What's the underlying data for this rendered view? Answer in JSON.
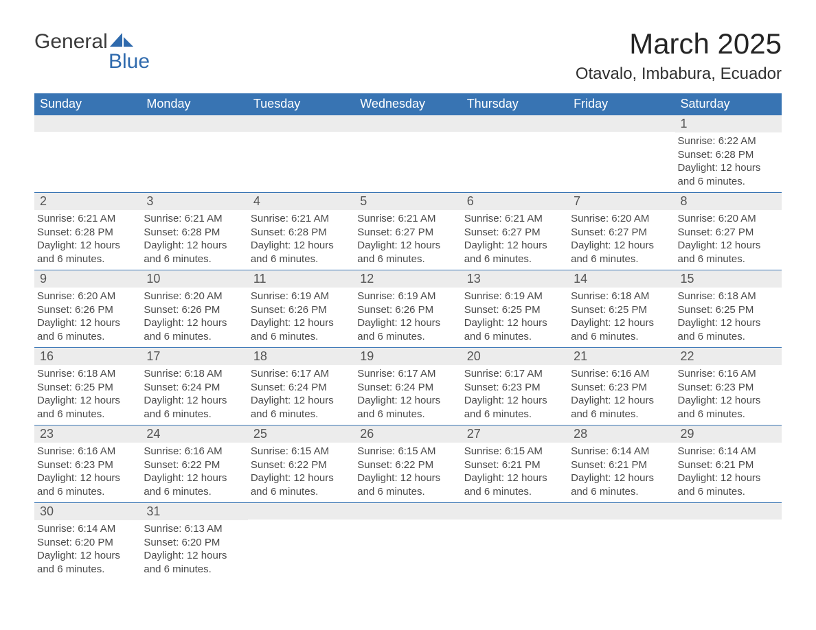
{
  "logo": {
    "line1": "General",
    "line2": "Blue"
  },
  "title": "March 2025",
  "location": "Otavalo, Imbabura, Ecuador",
  "colors": {
    "header_bg": "#3874b3",
    "header_text": "#ffffff",
    "daynum_bg": "#ececec",
    "row_border": "#3874b3",
    "logo_accent": "#2f6aad",
    "body_text": "#404040"
  },
  "day_headers": [
    "Sunday",
    "Monday",
    "Tuesday",
    "Wednesday",
    "Thursday",
    "Friday",
    "Saturday"
  ],
  "weeks": [
    [
      {
        "n": "",
        "sr": "",
        "ss": "",
        "dl": ""
      },
      {
        "n": "",
        "sr": "",
        "ss": "",
        "dl": ""
      },
      {
        "n": "",
        "sr": "",
        "ss": "",
        "dl": ""
      },
      {
        "n": "",
        "sr": "",
        "ss": "",
        "dl": ""
      },
      {
        "n": "",
        "sr": "",
        "ss": "",
        "dl": ""
      },
      {
        "n": "",
        "sr": "",
        "ss": "",
        "dl": ""
      },
      {
        "n": "1",
        "sr": "Sunrise: 6:22 AM",
        "ss": "Sunset: 6:28 PM",
        "dl": "Daylight: 12 hours and 6 minutes."
      }
    ],
    [
      {
        "n": "2",
        "sr": "Sunrise: 6:21 AM",
        "ss": "Sunset: 6:28 PM",
        "dl": "Daylight: 12 hours and 6 minutes."
      },
      {
        "n": "3",
        "sr": "Sunrise: 6:21 AM",
        "ss": "Sunset: 6:28 PM",
        "dl": "Daylight: 12 hours and 6 minutes."
      },
      {
        "n": "4",
        "sr": "Sunrise: 6:21 AM",
        "ss": "Sunset: 6:28 PM",
        "dl": "Daylight: 12 hours and 6 minutes."
      },
      {
        "n": "5",
        "sr": "Sunrise: 6:21 AM",
        "ss": "Sunset: 6:27 PM",
        "dl": "Daylight: 12 hours and 6 minutes."
      },
      {
        "n": "6",
        "sr": "Sunrise: 6:21 AM",
        "ss": "Sunset: 6:27 PM",
        "dl": "Daylight: 12 hours and 6 minutes."
      },
      {
        "n": "7",
        "sr": "Sunrise: 6:20 AM",
        "ss": "Sunset: 6:27 PM",
        "dl": "Daylight: 12 hours and 6 minutes."
      },
      {
        "n": "8",
        "sr": "Sunrise: 6:20 AM",
        "ss": "Sunset: 6:27 PM",
        "dl": "Daylight: 12 hours and 6 minutes."
      }
    ],
    [
      {
        "n": "9",
        "sr": "Sunrise: 6:20 AM",
        "ss": "Sunset: 6:26 PM",
        "dl": "Daylight: 12 hours and 6 minutes."
      },
      {
        "n": "10",
        "sr": "Sunrise: 6:20 AM",
        "ss": "Sunset: 6:26 PM",
        "dl": "Daylight: 12 hours and 6 minutes."
      },
      {
        "n": "11",
        "sr": "Sunrise: 6:19 AM",
        "ss": "Sunset: 6:26 PM",
        "dl": "Daylight: 12 hours and 6 minutes."
      },
      {
        "n": "12",
        "sr": "Sunrise: 6:19 AM",
        "ss": "Sunset: 6:26 PM",
        "dl": "Daylight: 12 hours and 6 minutes."
      },
      {
        "n": "13",
        "sr": "Sunrise: 6:19 AM",
        "ss": "Sunset: 6:25 PM",
        "dl": "Daylight: 12 hours and 6 minutes."
      },
      {
        "n": "14",
        "sr": "Sunrise: 6:18 AM",
        "ss": "Sunset: 6:25 PM",
        "dl": "Daylight: 12 hours and 6 minutes."
      },
      {
        "n": "15",
        "sr": "Sunrise: 6:18 AM",
        "ss": "Sunset: 6:25 PM",
        "dl": "Daylight: 12 hours and 6 minutes."
      }
    ],
    [
      {
        "n": "16",
        "sr": "Sunrise: 6:18 AM",
        "ss": "Sunset: 6:25 PM",
        "dl": "Daylight: 12 hours and 6 minutes."
      },
      {
        "n": "17",
        "sr": "Sunrise: 6:18 AM",
        "ss": "Sunset: 6:24 PM",
        "dl": "Daylight: 12 hours and 6 minutes."
      },
      {
        "n": "18",
        "sr": "Sunrise: 6:17 AM",
        "ss": "Sunset: 6:24 PM",
        "dl": "Daylight: 12 hours and 6 minutes."
      },
      {
        "n": "19",
        "sr": "Sunrise: 6:17 AM",
        "ss": "Sunset: 6:24 PM",
        "dl": "Daylight: 12 hours and 6 minutes."
      },
      {
        "n": "20",
        "sr": "Sunrise: 6:17 AM",
        "ss": "Sunset: 6:23 PM",
        "dl": "Daylight: 12 hours and 6 minutes."
      },
      {
        "n": "21",
        "sr": "Sunrise: 6:16 AM",
        "ss": "Sunset: 6:23 PM",
        "dl": "Daylight: 12 hours and 6 minutes."
      },
      {
        "n": "22",
        "sr": "Sunrise: 6:16 AM",
        "ss": "Sunset: 6:23 PM",
        "dl": "Daylight: 12 hours and 6 minutes."
      }
    ],
    [
      {
        "n": "23",
        "sr": "Sunrise: 6:16 AM",
        "ss": "Sunset: 6:23 PM",
        "dl": "Daylight: 12 hours and 6 minutes."
      },
      {
        "n": "24",
        "sr": "Sunrise: 6:16 AM",
        "ss": "Sunset: 6:22 PM",
        "dl": "Daylight: 12 hours and 6 minutes."
      },
      {
        "n": "25",
        "sr": "Sunrise: 6:15 AM",
        "ss": "Sunset: 6:22 PM",
        "dl": "Daylight: 12 hours and 6 minutes."
      },
      {
        "n": "26",
        "sr": "Sunrise: 6:15 AM",
        "ss": "Sunset: 6:22 PM",
        "dl": "Daylight: 12 hours and 6 minutes."
      },
      {
        "n": "27",
        "sr": "Sunrise: 6:15 AM",
        "ss": "Sunset: 6:21 PM",
        "dl": "Daylight: 12 hours and 6 minutes."
      },
      {
        "n": "28",
        "sr": "Sunrise: 6:14 AM",
        "ss": "Sunset: 6:21 PM",
        "dl": "Daylight: 12 hours and 6 minutes."
      },
      {
        "n": "29",
        "sr": "Sunrise: 6:14 AM",
        "ss": "Sunset: 6:21 PM",
        "dl": "Daylight: 12 hours and 6 minutes."
      }
    ],
    [
      {
        "n": "30",
        "sr": "Sunrise: 6:14 AM",
        "ss": "Sunset: 6:20 PM",
        "dl": "Daylight: 12 hours and 6 minutes."
      },
      {
        "n": "31",
        "sr": "Sunrise: 6:13 AM",
        "ss": "Sunset: 6:20 PM",
        "dl": "Daylight: 12 hours and 6 minutes."
      },
      {
        "n": "",
        "sr": "",
        "ss": "",
        "dl": ""
      },
      {
        "n": "",
        "sr": "",
        "ss": "",
        "dl": ""
      },
      {
        "n": "",
        "sr": "",
        "ss": "",
        "dl": ""
      },
      {
        "n": "",
        "sr": "",
        "ss": "",
        "dl": ""
      },
      {
        "n": "",
        "sr": "",
        "ss": "",
        "dl": ""
      }
    ]
  ]
}
